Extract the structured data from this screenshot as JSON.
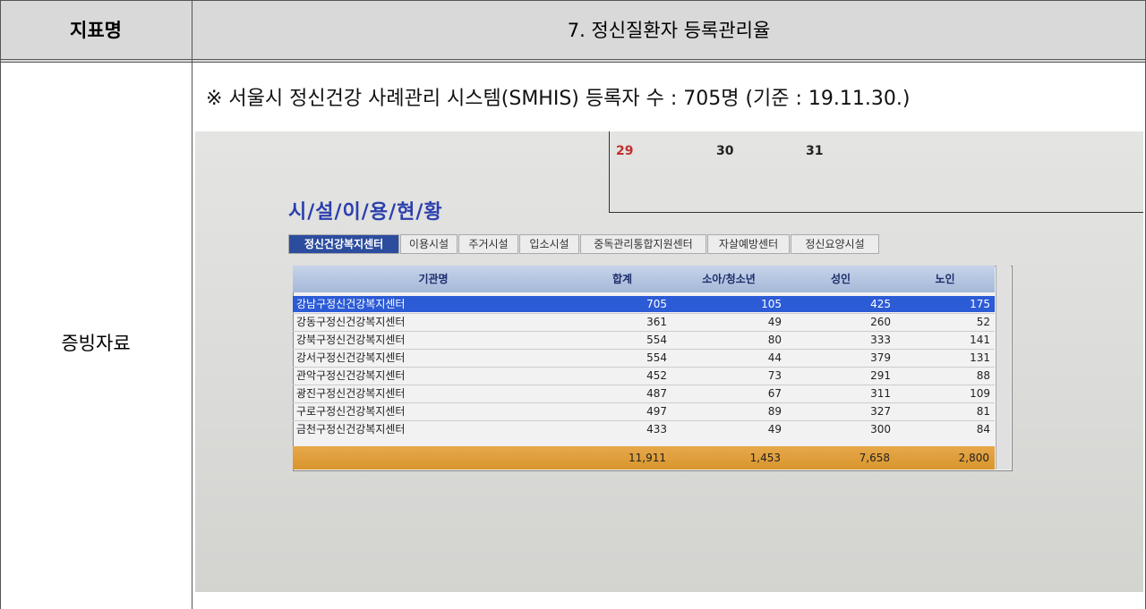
{
  "header": {
    "label": "지표명",
    "title": "7. 정신질환자 등록관리율"
  },
  "body": {
    "label": "증빙자료",
    "caption": "※ 서울시 정신건강 사례관리 시스템(SMHIS) 등록자 수 : 705명 (기준 : 19.11.30.)",
    "screenshot": {
      "calendar": [
        "29",
        "30",
        "31"
      ],
      "title": "시/설/이/용/현/황",
      "tabs": [
        "정신건강복지센터",
        "이용시설",
        "주거시설",
        "입소시설",
        "중독관리통합지원센터",
        "자살예방센터",
        "정신요양시설"
      ],
      "table": {
        "columns": [
          "기관명",
          "합계",
          "소아/청소년",
          "성인",
          "노인"
        ],
        "rows": [
          [
            "강남구정신건강복지센터",
            "705",
            "105",
            "425",
            "175"
          ],
          [
            "강동구정신건강복지센터",
            "361",
            "49",
            "260",
            "52"
          ],
          [
            "강북구정신건강복지센터",
            "554",
            "80",
            "333",
            "141"
          ],
          [
            "강서구정신건강복지센터",
            "554",
            "44",
            "379",
            "131"
          ],
          [
            "관악구정신건강복지센터",
            "452",
            "73",
            "291",
            "88"
          ],
          [
            "광진구정신건강복지센터",
            "487",
            "67",
            "311",
            "109"
          ],
          [
            "구로구정신건강복지센터",
            "497",
            "89",
            "327",
            "81"
          ],
          [
            "금천구정신건강복지센터",
            "433",
            "49",
            "300",
            "84"
          ]
        ],
        "total": [
          "11,911",
          "1,453",
          "7,658",
          "2,800"
        ]
      }
    }
  }
}
